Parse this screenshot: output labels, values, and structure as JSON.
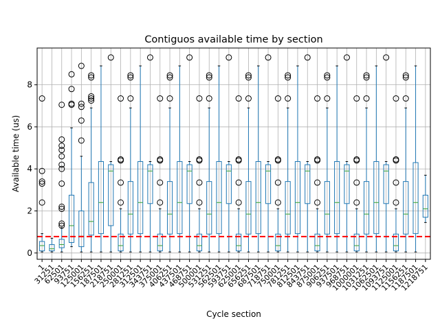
{
  "chart_data": {
    "type": "box",
    "title": "Contiguos available time by section",
    "xlabel": "Cycle section",
    "ylabel": "Available time (us)",
    "ylim": [
      -0.3,
      9.75
    ],
    "yticks": [
      0,
      2,
      4,
      6,
      8
    ],
    "grid": true,
    "reference_line": {
      "y": 0.78,
      "color": "#ff0000",
      "style": "dashed"
    },
    "colors": {
      "box": "#1f77b4",
      "median": "#2ca02c",
      "flier": "#000000",
      "grid": "#b0b0b0"
    },
    "categories": [
      "1",
      "31251",
      "62501",
      "93751",
      "125001",
      "156251",
      "187501",
      "218751",
      "250001",
      "281251",
      "312501",
      "343751",
      "375001",
      "406251",
      "437501",
      "468751",
      "500001",
      "531251",
      "562501",
      "593751",
      "625001",
      "656251",
      "687501",
      "718751",
      "750001",
      "781251",
      "812501",
      "843751",
      "875001",
      "906251",
      "937501",
      "968751",
      "1000001",
      "1031251",
      "1062501",
      "1093751",
      "1125001",
      "1156251",
      "1187501",
      "1218751"
    ],
    "boxes": [
      {
        "whislo": 0.05,
        "q1": 0.1,
        "med": 0.35,
        "q3": 0.55,
        "whishi": 0.92,
        "fliers": [
          2.4,
          3.3,
          3.4,
          3.9,
          7.35
        ]
      },
      {
        "whislo": 0.05,
        "q1": 0.1,
        "med": 0.2,
        "q3": 0.4,
        "whishi": 0.7,
        "fliers": []
      },
      {
        "whislo": 0.05,
        "q1": 0.25,
        "med": 0.4,
        "q3": 0.65,
        "whishi": 1.2,
        "fliers": [
          1.3,
          1.4,
          2.1,
          2.2,
          3.3,
          4.0,
          4.2,
          4.6,
          4.9,
          5.1,
          5.4,
          7.05
        ]
      },
      {
        "whislo": 0.3,
        "q1": 0.5,
        "med": 1.3,
        "q3": 2.75,
        "whishi": 5.95,
        "fliers": [
          7.05,
          7.1,
          7.8,
          8.5
        ]
      },
      {
        "whislo": 0.05,
        "q1": 0.3,
        "med": 0.8,
        "q3": 2.0,
        "whishi": 4.6,
        "fliers": [
          5.35,
          6.3,
          6.95,
          7.1,
          8.9
        ]
      },
      {
        "whislo": 0.05,
        "q1": 0.85,
        "med": 1.5,
        "q3": 3.35,
        "whishi": 6.9,
        "fliers": [
          7.25,
          7.35,
          7.45,
          8.35,
          8.45
        ]
      },
      {
        "whislo": 0.05,
        "q1": 0.92,
        "med": 2.4,
        "q3": 4.35,
        "whishi": 8.9,
        "fliers": []
      },
      {
        "whislo": 0.05,
        "q1": 1.3,
        "med": 3.9,
        "q3": 4.2,
        "whishi": 4.35,
        "fliers": [
          9.3
        ]
      },
      {
        "whislo": 0.05,
        "q1": 0.1,
        "med": 0.35,
        "q3": 0.9,
        "whishi": 2.1,
        "fliers": [
          2.4,
          3.35,
          4.4,
          4.45,
          7.35
        ]
      },
      {
        "whislo": 0.05,
        "q1": 0.9,
        "med": 1.85,
        "q3": 3.4,
        "whishi": 6.9,
        "fliers": [
          7.35,
          8.35,
          8.45
        ]
      },
      {
        "whislo": 0.05,
        "q1": 0.92,
        "med": 2.4,
        "q3": 4.35,
        "whishi": 8.9,
        "fliers": []
      },
      {
        "whislo": 0.05,
        "q1": 2.35,
        "med": 3.9,
        "q3": 4.2,
        "whishi": 4.35,
        "fliers": [
          9.3
        ]
      },
      {
        "whislo": 0.05,
        "q1": 0.1,
        "med": 0.35,
        "q3": 0.9,
        "whishi": 2.1,
        "fliers": [
          2.4,
          3.35,
          4.4,
          4.45,
          7.35
        ]
      },
      {
        "whislo": 0.05,
        "q1": 0.9,
        "med": 1.85,
        "q3": 3.4,
        "whishi": 6.9,
        "fliers": [
          7.35,
          8.35,
          8.45
        ]
      },
      {
        "whislo": 0.05,
        "q1": 0.92,
        "med": 2.4,
        "q3": 4.35,
        "whishi": 8.9,
        "fliers": []
      },
      {
        "whislo": 0.05,
        "q1": 2.35,
        "med": 3.9,
        "q3": 4.2,
        "whishi": 4.35,
        "fliers": [
          9.3
        ]
      },
      {
        "whislo": 0.05,
        "q1": 0.1,
        "med": 0.35,
        "q3": 0.9,
        "whishi": 2.1,
        "fliers": [
          2.4,
          3.35,
          4.4,
          4.45,
          7.35
        ]
      },
      {
        "whislo": 0.05,
        "q1": 0.9,
        "med": 1.85,
        "q3": 3.4,
        "whishi": 6.9,
        "fliers": [
          7.35,
          8.35,
          8.45
        ]
      },
      {
        "whislo": 0.05,
        "q1": 0.92,
        "med": 2.4,
        "q3": 4.35,
        "whishi": 8.9,
        "fliers": []
      },
      {
        "whislo": 0.05,
        "q1": 2.35,
        "med": 3.9,
        "q3": 4.2,
        "whishi": 4.35,
        "fliers": [
          9.3
        ]
      },
      {
        "whislo": 0.05,
        "q1": 0.1,
        "med": 0.35,
        "q3": 0.9,
        "whishi": 2.1,
        "fliers": [
          2.4,
          3.35,
          4.4,
          4.45,
          7.35
        ]
      },
      {
        "whislo": 0.05,
        "q1": 0.9,
        "med": 1.85,
        "q3": 3.4,
        "whishi": 6.9,
        "fliers": [
          7.35,
          8.35,
          8.45
        ]
      },
      {
        "whislo": 0.05,
        "q1": 0.92,
        "med": 2.4,
        "q3": 4.35,
        "whishi": 8.9,
        "fliers": []
      },
      {
        "whislo": 0.05,
        "q1": 2.35,
        "med": 3.9,
        "q3": 4.2,
        "whishi": 4.35,
        "fliers": [
          9.3
        ]
      },
      {
        "whislo": 0.05,
        "q1": 0.1,
        "med": 0.35,
        "q3": 0.9,
        "whishi": 2.1,
        "fliers": [
          2.4,
          3.35,
          4.4,
          4.45,
          7.35
        ]
      },
      {
        "whislo": 0.05,
        "q1": 0.9,
        "med": 1.85,
        "q3": 3.4,
        "whishi": 6.9,
        "fliers": [
          7.35,
          8.35,
          8.45
        ]
      },
      {
        "whislo": 0.05,
        "q1": 0.92,
        "med": 2.4,
        "q3": 4.35,
        "whishi": 8.9,
        "fliers": []
      },
      {
        "whislo": 0.05,
        "q1": 2.35,
        "med": 3.9,
        "q3": 4.2,
        "whishi": 4.35,
        "fliers": [
          9.3
        ]
      },
      {
        "whislo": 0.05,
        "q1": 0.1,
        "med": 0.35,
        "q3": 0.9,
        "whishi": 2.1,
        "fliers": [
          2.4,
          3.35,
          4.4,
          4.45,
          7.35
        ]
      },
      {
        "whislo": 0.05,
        "q1": 0.9,
        "med": 1.85,
        "q3": 3.4,
        "whishi": 6.9,
        "fliers": [
          7.35,
          8.35,
          8.45
        ]
      },
      {
        "whislo": 0.05,
        "q1": 0.92,
        "med": 2.4,
        "q3": 4.35,
        "whishi": 8.9,
        "fliers": []
      },
      {
        "whislo": 0.05,
        "q1": 2.35,
        "med": 3.9,
        "q3": 4.2,
        "whishi": 4.35,
        "fliers": [
          9.3
        ]
      },
      {
        "whislo": 0.05,
        "q1": 0.1,
        "med": 0.35,
        "q3": 0.9,
        "whishi": 2.1,
        "fliers": [
          2.4,
          3.35,
          4.4,
          4.45,
          7.35
        ]
      },
      {
        "whislo": 0.05,
        "q1": 0.9,
        "med": 1.85,
        "q3": 3.4,
        "whishi": 6.9,
        "fliers": [
          7.35,
          8.35,
          8.45
        ]
      },
      {
        "whislo": 0.05,
        "q1": 0.92,
        "med": 2.4,
        "q3": 4.35,
        "whishi": 8.9,
        "fliers": []
      },
      {
        "whislo": 0.05,
        "q1": 2.35,
        "med": 3.9,
        "q3": 4.2,
        "whishi": 4.35,
        "fliers": [
          9.3
        ]
      },
      {
        "whislo": 0.05,
        "q1": 0.1,
        "med": 0.35,
        "q3": 0.9,
        "whishi": 2.1,
        "fliers": [
          2.4,
          3.35,
          4.4,
          4.45,
          7.35
        ]
      },
      {
        "whislo": 0.05,
        "q1": 0.9,
        "med": 1.85,
        "q3": 3.4,
        "whishi": 6.9,
        "fliers": [
          7.35,
          8.35,
          8.45
        ]
      },
      {
        "whislo": 0.05,
        "q1": 0.92,
        "med": 2.4,
        "q3": 4.3,
        "whishi": 8.9,
        "fliers": []
      },
      {
        "whislo": 1.45,
        "q1": 1.7,
        "med": 2.1,
        "q3": 2.75,
        "whishi": 3.7,
        "fliers": []
      }
    ]
  }
}
